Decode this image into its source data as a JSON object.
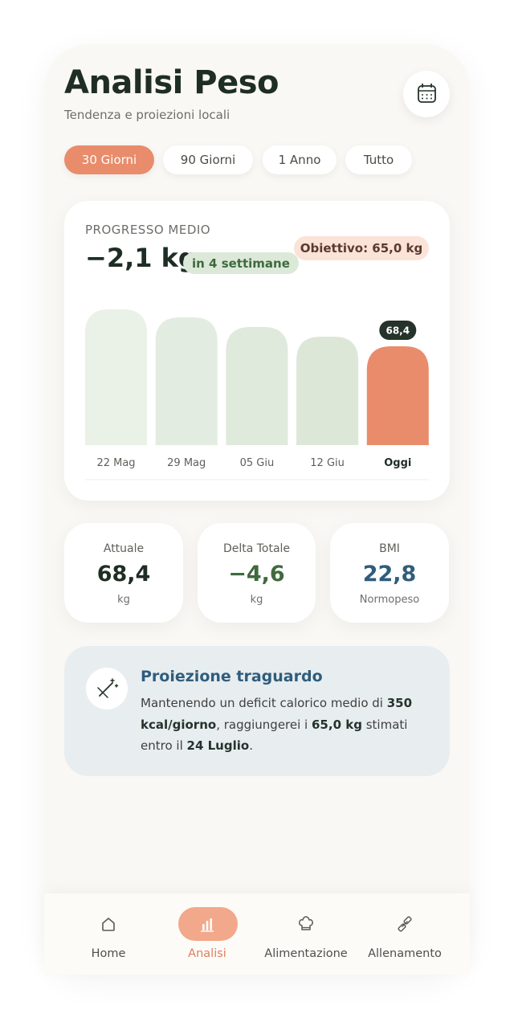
{
  "header": {
    "title": "Analisi Peso",
    "subtitle": "Tendenza e proiezioni locali"
  },
  "filters": [
    {
      "label": "30 Giorni",
      "active": true
    },
    {
      "label": "90 Giorni",
      "active": false
    },
    {
      "label": "1 Anno",
      "active": false
    },
    {
      "label": "Tutto",
      "active": false
    }
  ],
  "progress": {
    "kicker": "PROGRESSO MEDIO",
    "value": "−2,1 kg",
    "badge": "in 4 settimane",
    "goal": "Obiettivo: 65,0 kg"
  },
  "chart_data": {
    "type": "bar",
    "categories": [
      "22 Mag",
      "29 Mag",
      "05 Giu",
      "12 Giu",
      "Oggi"
    ],
    "values": [
      73.0,
      72.0,
      70.8,
      69.6,
      68.4
    ],
    "value_labels": [
      null,
      null,
      null,
      null,
      "68,4"
    ],
    "colors": [
      "#eaf1e7",
      "#e3ece0",
      "#dfe9dc",
      "#dce7d8",
      "#e98c6c"
    ],
    "ylim": [
      56.1,
      73.0
    ]
  },
  "stats": [
    {
      "label": "Attuale",
      "value": "68,4",
      "unit": "kg",
      "color": "#1f2e25"
    },
    {
      "label": "Delta Totale",
      "value": "−4,6",
      "unit": "kg",
      "color": "#3f6a3d"
    },
    {
      "label": "BMI",
      "value": "22,8",
      "unit": "Normopeso",
      "color": "#2f5d7c"
    }
  ],
  "projection": {
    "title": "Proiezione traguardo",
    "parts": [
      {
        "text": "Mantenendo un deficit calorico medio di ",
        "bold": false
      },
      {
        "text": "350 kcal/giorno",
        "bold": true
      },
      {
        "text": ", raggiungerei i ",
        "bold": false
      },
      {
        "text": "65,0 kg",
        "bold": true
      },
      {
        "text": " stimati entro il ",
        "bold": false
      },
      {
        "text": "24 Luglio",
        "bold": true
      },
      {
        "text": ".",
        "bold": false
      }
    ]
  },
  "nav": [
    {
      "label": "Home",
      "active": false
    },
    {
      "label": "Analisi",
      "active": true
    },
    {
      "label": "Alimentazione",
      "active": false
    },
    {
      "label": "Allenamento",
      "active": false
    }
  ]
}
